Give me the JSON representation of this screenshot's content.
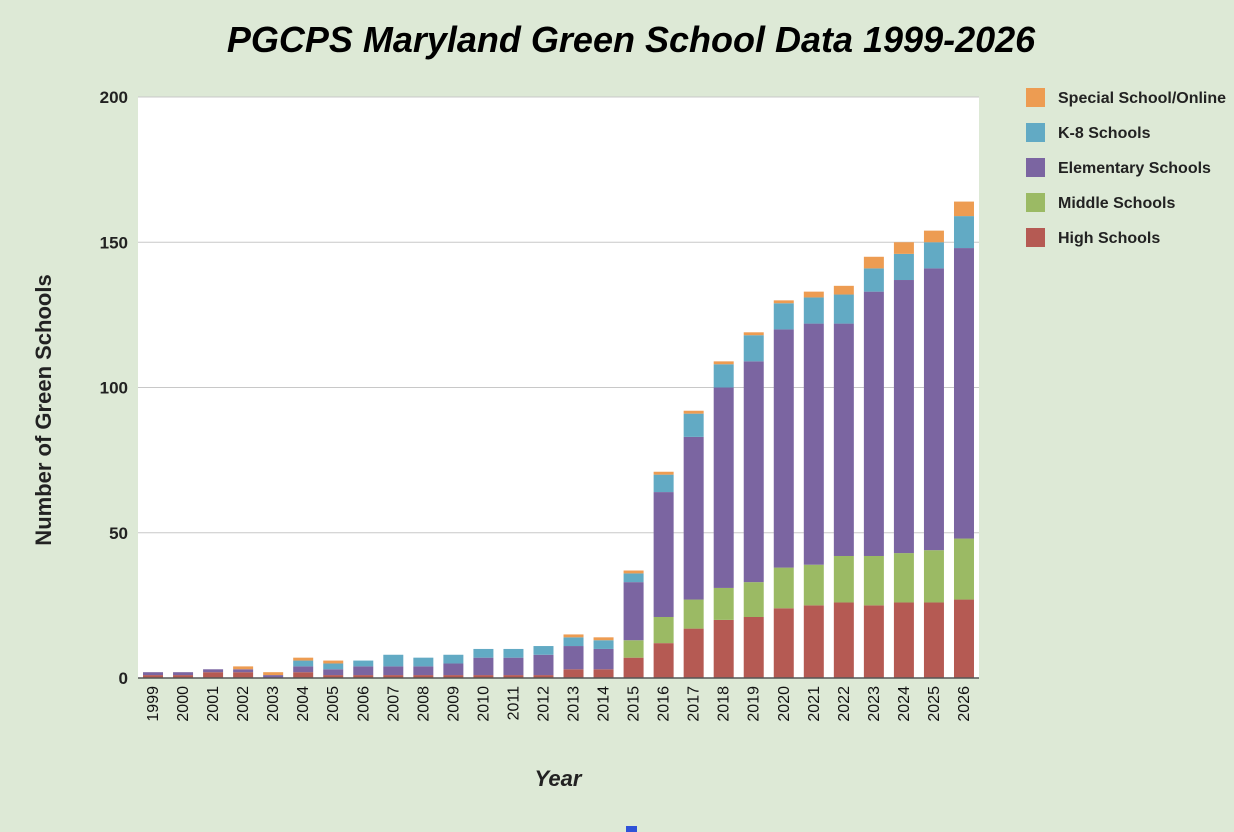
{
  "chart_data": {
    "type": "bar",
    "stacked": true,
    "title": "PGCPS Maryland Green School Data 1999-2026",
    "xlabel": "Year",
    "ylabel": "Number of Green Schools",
    "ylim": [
      0,
      200
    ],
    "yticks": [
      0,
      50,
      100,
      150,
      200
    ],
    "grid": true,
    "legend_position": "top-right",
    "categories": [
      "1999",
      "2000",
      "2001",
      "2002",
      "2003",
      "2004",
      "2005",
      "2006",
      "2007",
      "2008",
      "2009",
      "2010",
      "2011",
      "2012",
      "2013",
      "2014",
      "2015",
      "2016",
      "2017",
      "2018",
      "2019",
      "2020",
      "2021",
      "2022",
      "2023",
      "2024",
      "2025",
      "2026"
    ],
    "series": [
      {
        "name": "High Schools",
        "color": "#b55a53",
        "values": [
          1,
          1,
          2,
          2,
          0,
          2,
          1,
          1,
          1,
          1,
          1,
          1,
          1,
          1,
          3,
          3,
          7,
          12,
          17,
          20,
          21,
          24,
          25,
          26,
          25,
          26,
          26,
          27
        ]
      },
      {
        "name": "Middle Schools",
        "color": "#9bba64",
        "values": [
          0,
          0,
          0,
          0,
          0,
          0,
          0,
          0,
          0,
          0,
          0,
          0,
          0,
          0,
          0,
          0,
          6,
          9,
          10,
          11,
          12,
          14,
          14,
          16,
          17,
          17,
          18,
          21
        ]
      },
      {
        "name": "Elementary Schools",
        "color": "#7b65a1",
        "values": [
          1,
          1,
          1,
          1,
          1,
          2,
          2,
          3,
          3,
          3,
          4,
          6,
          6,
          7,
          8,
          7,
          20,
          43,
          56,
          69,
          76,
          82,
          83,
          80,
          91,
          94,
          97,
          100
        ]
      },
      {
        "name": "K-8 Schools",
        "color": "#62aac4",
        "values": [
          0,
          0,
          0,
          0,
          0,
          2,
          2,
          2,
          4,
          3,
          3,
          3,
          3,
          3,
          3,
          3,
          3,
          6,
          8,
          8,
          9,
          9,
          9,
          10,
          8,
          9,
          9,
          11
        ]
      },
      {
        "name": "Special School/Online",
        "color": "#ed9c52",
        "values": [
          0,
          0,
          0,
          1,
          1,
          1,
          1,
          0,
          0,
          0,
          0,
          0,
          0,
          0,
          1,
          1,
          1,
          1,
          1,
          1,
          1,
          1,
          2,
          3,
          4,
          4,
          4,
          5
        ]
      }
    ],
    "legend_order": [
      "Special School/Online",
      "K-8 Schools",
      "Elementary Schools",
      "Middle Schools",
      "High Schools"
    ]
  }
}
